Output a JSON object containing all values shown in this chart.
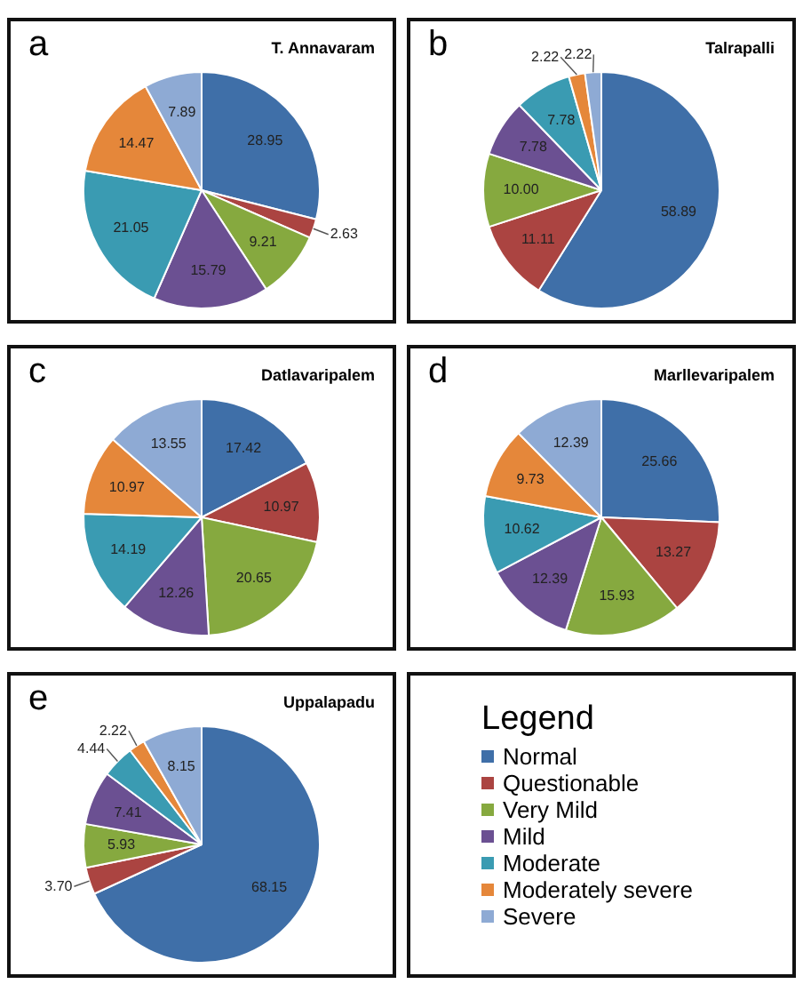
{
  "chart_data": [
    {
      "type": "pie",
      "title": "T. Annavaram",
      "annotations": [
        "a"
      ],
      "categories": [
        null,
        null,
        null,
        null,
        null,
        null,
        null
      ],
      "values": [
        28.95,
        2.63,
        9.21,
        15.79,
        21.05,
        14.47,
        7.89
      ],
      "value_labels": [
        "28.95",
        "2.63",
        "9.21",
        "15.79",
        "21.05",
        "14.47",
        "7.89"
      ],
      "colors": [
        "#3f6fa8",
        "#ab4441",
        "#86a93f",
        "#6b5092",
        "#3a9bb2",
        "#e5873a",
        "#8eaad4"
      ]
    },
    {
      "type": "pie",
      "title": "Talrapalli",
      "annotations": [
        "b"
      ],
      "categories": [
        null,
        null,
        null,
        null,
        null,
        null,
        null
      ],
      "values": [
        58.89,
        11.11,
        10.0,
        7.78,
        7.78,
        2.22,
        2.22
      ],
      "value_labels": [
        "58.89",
        "11.11",
        "10.00",
        "7.78",
        "7.78",
        "2.22",
        "2.22"
      ],
      "colors": [
        "#3f6fa8",
        "#ab4441",
        "#86a93f",
        "#6b5092",
        "#3a9bb2",
        "#e5873a",
        "#8eaad4"
      ]
    },
    {
      "type": "pie",
      "title": "Datlavaripalem",
      "annotations": [
        "c"
      ],
      "categories": [
        null,
        null,
        null,
        null,
        null,
        null,
        null
      ],
      "values": [
        17.42,
        10.97,
        20.65,
        12.26,
        14.19,
        10.97,
        13.55
      ],
      "value_labels": [
        "17.42",
        "10.97",
        "20.65",
        "12.26",
        "14.19",
        "10.97",
        "13.55"
      ],
      "colors": [
        "#3f6fa8",
        "#ab4441",
        "#86a93f",
        "#6b5092",
        "#3a9bb2",
        "#e5873a",
        "#8eaad4"
      ]
    },
    {
      "type": "pie",
      "title": "Marllevaripalem",
      "annotations": [
        "d"
      ],
      "categories": [
        null,
        null,
        null,
        null,
        null,
        null,
        null
      ],
      "values": [
        25.66,
        13.27,
        15.93,
        12.39,
        10.62,
        9.73,
        12.39
      ],
      "value_labels": [
        "25.66",
        "13.27",
        "15.93",
        "12.39",
        "10.62",
        "9.73",
        "12.39"
      ],
      "colors": [
        "#3f6fa8",
        "#ab4441",
        "#86a93f",
        "#6b5092",
        "#3a9bb2",
        "#e5873a",
        "#8eaad4"
      ]
    },
    {
      "type": "pie",
      "title": "Uppalapadu",
      "annotations": [
        "e"
      ],
      "categories": [
        "Normal",
        "Questionable",
        "Very Mild",
        "Mild",
        "Moderate",
        "Moderately severe",
        "Severe"
      ],
      "values": [
        68.15,
        3.7,
        5.93,
        7.41,
        4.44,
        2.22,
        8.15
      ],
      "value_labels": [
        "68.15",
        "3.70",
        "5.93",
        "7.41",
        "4.44",
        "2.22",
        "8.15"
      ],
      "colors": [
        "#3f6fa8",
        "#ab4441",
        "#86a93f",
        "#6b5092",
        "#3a9bb2",
        "#e5873a",
        "#8eaad4"
      ],
      "legend": "right",
      "legend_title": "Legend"
    }
  ]
}
